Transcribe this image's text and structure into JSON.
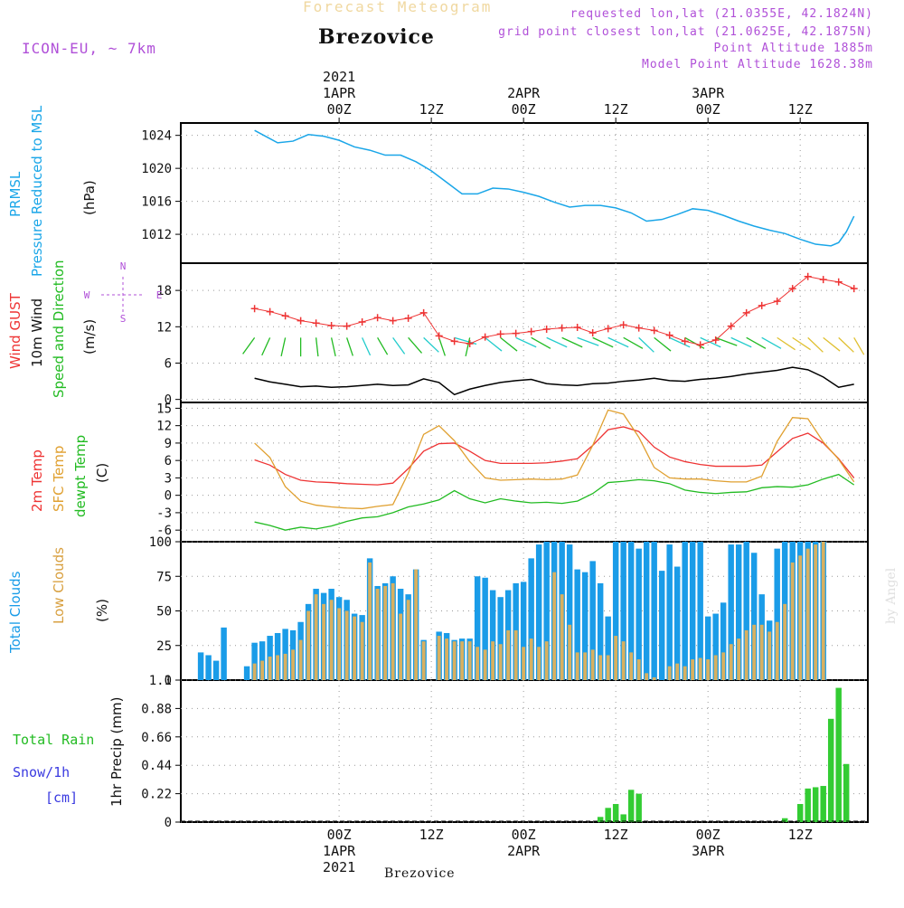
{
  "header": {
    "product": "Forecast Meteogram",
    "location": "Brezovice",
    "model": "ICON-EU, ~ 7km",
    "requested": "requested lon,lat (21.0355E, 42.1824N)",
    "gridpoint": "grid point closest lon,lat (21.0625E, 42.1875N)",
    "point_alt": "Point Altitude 1885m",
    "model_alt": "Model Point Altitude 1628.38m",
    "footer": "Brezovice",
    "watermark": "by Angel"
  },
  "colors": {
    "pressure": "#1aa6e8",
    "gust": "#ee3333",
    "wind": "#000000",
    "dir": "#22bb22",
    "t2m": "#ee3333",
    "sfc": "#e0a030",
    "dew": "#22bb22",
    "total_clouds": "#1a9ce8",
    "low_clouds": "#d8b060",
    "rain": "#33cc33",
    "snow": "#3a3ae0",
    "model": "#b050d8"
  },
  "time_axis": {
    "top_ticks": [
      "00Z",
      "12Z",
      "00Z",
      "12Z",
      "00Z",
      "12Z"
    ],
    "top_dates": [
      "1APR",
      "2APR",
      "3APR"
    ],
    "top_year": "2021",
    "bottom_ticks": [
      "00Z",
      "12Z",
      "00Z",
      "12Z",
      "00Z",
      "12Z"
    ],
    "bottom_dates": [
      "1APR",
      "2APR",
      "3APR"
    ],
    "bottom_year": "2021"
  },
  "chart_data": [
    {
      "type": "line",
      "ylabel_lines": [
        "PRMSL",
        "Pressure Reduced to MSL"
      ],
      "unit": "(hPa)",
      "ylim": [
        1008.5,
        1025.5
      ],
      "yticks": [
        1012,
        1016,
        1020,
        1024
      ],
      "x_hours": [
        -11,
        -9,
        -8,
        -6,
        -4,
        -2,
        0,
        2,
        4,
        6,
        8,
        10,
        12,
        14,
        16,
        18,
        20,
        22,
        24,
        26,
        28,
        30,
        32,
        34,
        36,
        38,
        40,
        42,
        44,
        46,
        48,
        50,
        52,
        54,
        56,
        58,
        60,
        62,
        64,
        65,
        66,
        67
      ],
      "series": [
        {
          "values": [
            1024.6,
            1023.6,
            1023.1,
            1023.3,
            1024.1,
            1023.9,
            1023.4,
            1022.6,
            1022.2,
            1021.6,
            1021.6,
            1020.8,
            1019.7,
            1018.3,
            1016.9,
            1016.9,
            1017.6,
            1017.5,
            1017.1,
            1016.6,
            1015.9,
            1015.3,
            1015.5,
            1015.5,
            1015.2,
            1014.6,
            1013.6,
            1013.8,
            1014.4,
            1015.1,
            1014.9,
            1014.3,
            1013.6,
            1013.0,
            1012.5,
            1012.1,
            1011.4,
            1010.8,
            1010.6,
            1011.0,
            1012.3,
            1014.2
          ]
        }
      ]
    },
    {
      "type": "line",
      "ylabel_lines": [
        "Wind GUST",
        "10m Wind",
        "Speed and Direction"
      ],
      "unit": "(m/s)",
      "ylim": [
        -0.5,
        22.5
      ],
      "yticks": [
        0,
        6,
        12,
        18
      ],
      "compass": {
        "n": "N",
        "s": "S",
        "w": "W",
        "e": "E"
      },
      "x_hours": [
        -11,
        -9,
        -7,
        -5,
        -3,
        -1,
        1,
        3,
        5,
        7,
        9,
        11,
        13,
        15,
        17,
        19,
        21,
        23,
        25,
        27,
        29,
        31,
        33,
        35,
        37,
        39,
        41,
        43,
        45,
        47,
        49,
        51,
        53,
        55,
        57,
        59,
        61,
        63,
        65,
        67
      ],
      "series": [
        {
          "name": "Wind GUST",
          "values": [
            15.0,
            14.5,
            13.8,
            13.0,
            12.6,
            12.2,
            12.1,
            12.8,
            13.5,
            13.0,
            13.4,
            14.3,
            10.5,
            9.6,
            9.2,
            10.3,
            10.8,
            10.9,
            11.2,
            11.6,
            11.8,
            11.9,
            11.0,
            11.7,
            12.3,
            11.8,
            11.4,
            10.6,
            9.6,
            9.0,
            9.8,
            12.1,
            14.3,
            15.5,
            16.2,
            18.3,
            20.3,
            19.8,
            19.4,
            18.3
          ]
        },
        {
          "name": "10m Wind",
          "values": [
            3.5,
            2.9,
            2.5,
            2.1,
            2.2,
            2.0,
            2.1,
            2.3,
            2.5,
            2.3,
            2.4,
            3.4,
            2.8,
            0.8,
            1.7,
            2.3,
            2.8,
            3.1,
            3.3,
            2.6,
            2.4,
            2.3,
            2.6,
            2.7,
            3.0,
            3.2,
            3.5,
            3.1,
            3.0,
            3.3,
            3.5,
            3.8,
            4.2,
            4.5,
            4.8,
            5.3,
            4.9,
            3.7,
            2.0,
            2.5
          ]
        }
      ],
      "direction_arrows_deg": [
        150,
        160,
        170,
        180,
        185,
        190,
        195,
        200,
        205,
        210,
        215,
        220,
        195,
        250,
        170,
        225,
        225,
        240,
        235,
        240,
        240,
        245,
        240,
        240,
        235,
        220,
        225,
        240,
        235,
        240,
        245,
        240,
        235,
        235,
        230,
        230,
        220,
        225,
        220,
        205
      ]
    },
    {
      "type": "line",
      "ylabel_lines": [
        "2m Temp",
        "SFC Temp",
        "dewpt Temp"
      ],
      "unit": "(C)",
      "ylim": [
        -8,
        16
      ],
      "yticks": [
        -6,
        -3,
        0,
        3,
        6,
        9,
        12,
        15
      ],
      "x_hours": [
        -11,
        -9,
        -7,
        -5,
        -3,
        -1,
        1,
        3,
        5,
        7,
        9,
        11,
        13,
        15,
        17,
        19,
        21,
        23,
        25,
        27,
        29,
        31,
        33,
        35,
        37,
        39,
        41,
        43,
        45,
        47,
        49,
        51,
        53,
        55,
        57,
        59,
        61,
        63,
        65,
        67
      ],
      "series": [
        {
          "name": "2m Temp",
          "values": [
            6.1,
            5.2,
            3.6,
            2.6,
            2.3,
            2.2,
            2.0,
            1.9,
            1.8,
            2.1,
            4.6,
            7.6,
            8.9,
            9.0,
            7.6,
            6.0,
            5.5,
            5.5,
            5.5,
            5.6,
            5.9,
            6.3,
            8.6,
            11.3,
            11.8,
            11.0,
            8.3,
            6.6,
            5.8,
            5.3,
            5.0,
            5.0,
            5.0,
            5.2,
            7.5,
            9.8,
            10.7,
            9.0,
            6.3,
            3.0
          ]
        },
        {
          "name": "SFC Temp",
          "values": [
            9.0,
            6.5,
            1.5,
            -1.0,
            -1.7,
            -2.0,
            -2.2,
            -2.3,
            -1.9,
            -1.6,
            3.8,
            10.5,
            12.0,
            9.4,
            5.8,
            3.0,
            2.6,
            2.7,
            2.8,
            2.7,
            2.8,
            3.5,
            8.6,
            14.7,
            14.0,
            10.0,
            4.8,
            3.0,
            2.8,
            2.8,
            2.5,
            2.3,
            2.3,
            3.3,
            9.3,
            13.4,
            13.2,
            9.2,
            6.2,
            2.3
          ]
        },
        {
          "name": "dewpt Temp",
          "values": [
            -4.6,
            -5.2,
            -6.0,
            -5.5,
            -5.8,
            -5.3,
            -4.5,
            -3.9,
            -3.7,
            -3.0,
            -2.0,
            -1.5,
            -0.8,
            0.8,
            -0.6,
            -1.3,
            -0.6,
            -1.0,
            -1.3,
            -1.2,
            -1.4,
            -1.0,
            0.3,
            2.2,
            2.4,
            2.7,
            2.5,
            2.0,
            0.9,
            0.5,
            0.3,
            0.5,
            0.6,
            1.3,
            1.5,
            1.4,
            1.8,
            2.8,
            3.6,
            1.8
          ]
        }
      ]
    },
    {
      "type": "bar",
      "ylabel_lines": [
        "Total Clouds",
        "Low Clouds"
      ],
      "unit": "(%)",
      "ylim": [
        0,
        100
      ],
      "yticks": [
        0,
        25,
        50,
        75,
        100
      ],
      "x_start_hour": -18,
      "series": [
        {
          "name": "Total Clouds",
          "values": [
            20,
            18,
            14,
            38,
            0,
            0,
            10,
            27,
            28,
            32,
            34,
            37,
            36,
            42,
            55,
            66,
            63,
            66,
            60,
            58,
            48,
            47,
            88,
            68,
            70,
            75,
            66,
            62,
            80,
            29,
            0,
            35,
            34,
            29,
            30,
            30,
            75,
            74,
            65,
            60,
            65,
            70,
            71,
            88,
            98,
            100,
            100,
            100,
            98,
            80,
            78,
            86,
            70,
            46,
            100,
            100,
            100,
            95,
            100,
            100,
            79,
            98,
            82,
            100,
            100,
            100,
            46,
            48,
            56,
            98,
            98,
            100,
            92,
            62,
            43,
            95,
            100,
            100,
            100,
            100,
            100,
            100
          ]
        },
        {
          "name": "Low Clouds",
          "values": [
            0,
            0,
            0,
            0,
            0,
            0,
            0,
            12,
            14,
            17,
            18,
            19,
            22,
            29,
            50,
            62,
            55,
            58,
            52,
            50,
            46,
            42,
            85,
            66,
            68,
            70,
            48,
            58,
            80,
            28,
            0,
            32,
            30,
            28,
            28,
            28,
            24,
            22,
            28,
            26,
            36,
            36,
            24,
            30,
            24,
            28,
            78,
            62,
            40,
            20,
            20,
            22,
            18,
            18,
            32,
            28,
            20,
            15,
            5,
            2,
            0,
            10,
            12,
            10,
            15,
            16,
            15,
            18,
            20,
            26,
            30,
            36,
            40,
            40,
            35,
            42,
            55,
            85,
            90,
            95,
            98,
            100
          ]
        }
      ]
    },
    {
      "type": "bar",
      "ylabel_lines": [
        "Total   Rain",
        "Snow/1h",
        "[cm]"
      ],
      "unit": "1hr Precip (mm)",
      "ylim": [
        0,
        1.1
      ],
      "yticks": [
        0,
        0.22,
        0.44,
        0.66,
        0.88,
        1.1
      ],
      "ytick_labels": [
        "0",
        "0.22",
        "0.44",
        "0.66",
        "0.88",
        "1.1"
      ],
      "x_hours": [
        34,
        35,
        36,
        37,
        38,
        39,
        40,
        58,
        60,
        61,
        62,
        63,
        64,
        65,
        66,
        67
      ],
      "series": [
        {
          "name": "Total Rain",
          "values": [
            0.04,
            0.11,
            0.14,
            0.06,
            0.25,
            0.22,
            0.0,
            0.03,
            0.14,
            0.26,
            0.27,
            0.28,
            0.8,
            1.04,
            0.45,
            0.0
          ]
        }
      ]
    }
  ]
}
